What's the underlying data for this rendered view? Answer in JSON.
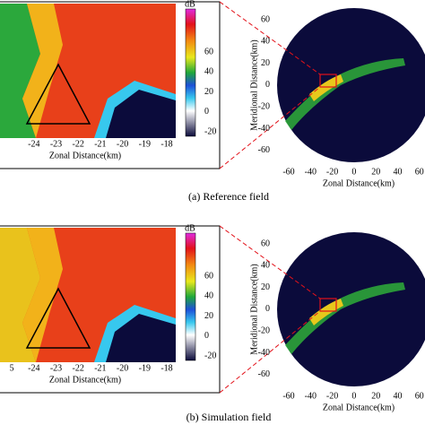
{
  "panels": [
    {
      "caption": "(a)  Reference field",
      "zoom": {
        "x_ticks": [
          -24,
          -23,
          -22,
          -21,
          -20,
          -19,
          -18
        ],
        "x_label": "Zonal Distance(km)",
        "colorbar_unit": "dB",
        "colorbar_ticks": [
          60,
          40,
          20,
          0,
          -20
        ]
      },
      "radar": {
        "x_ticks": [
          -60,
          -40,
          -20,
          0,
          20,
          40,
          60
        ],
        "y_ticks": [
          60,
          40,
          20,
          0,
          -20,
          -40,
          -60
        ],
        "x_label": "Zonal Distance(km)",
        "y_label": "Meridional Distance(km)"
      }
    },
    {
      "caption": "(b)  Simulation field",
      "zoom": {
        "x_ticks": [
          "5",
          -24,
          -23,
          -22,
          -21,
          -20,
          -19,
          -18
        ],
        "x_label": "Zonal Distance(km)",
        "colorbar_unit": "dB",
        "colorbar_ticks": [
          60,
          40,
          20,
          0,
          -20
        ]
      },
      "radar": {
        "x_ticks": [
          -60,
          -40,
          -20,
          0,
          20,
          40,
          60
        ],
        "y_ticks": [
          60,
          40,
          20,
          0,
          -20,
          -40,
          -60
        ],
        "x_label": "Zonal Distance(km)",
        "y_label": "Meridional Distance(km)"
      }
    }
  ]
}
